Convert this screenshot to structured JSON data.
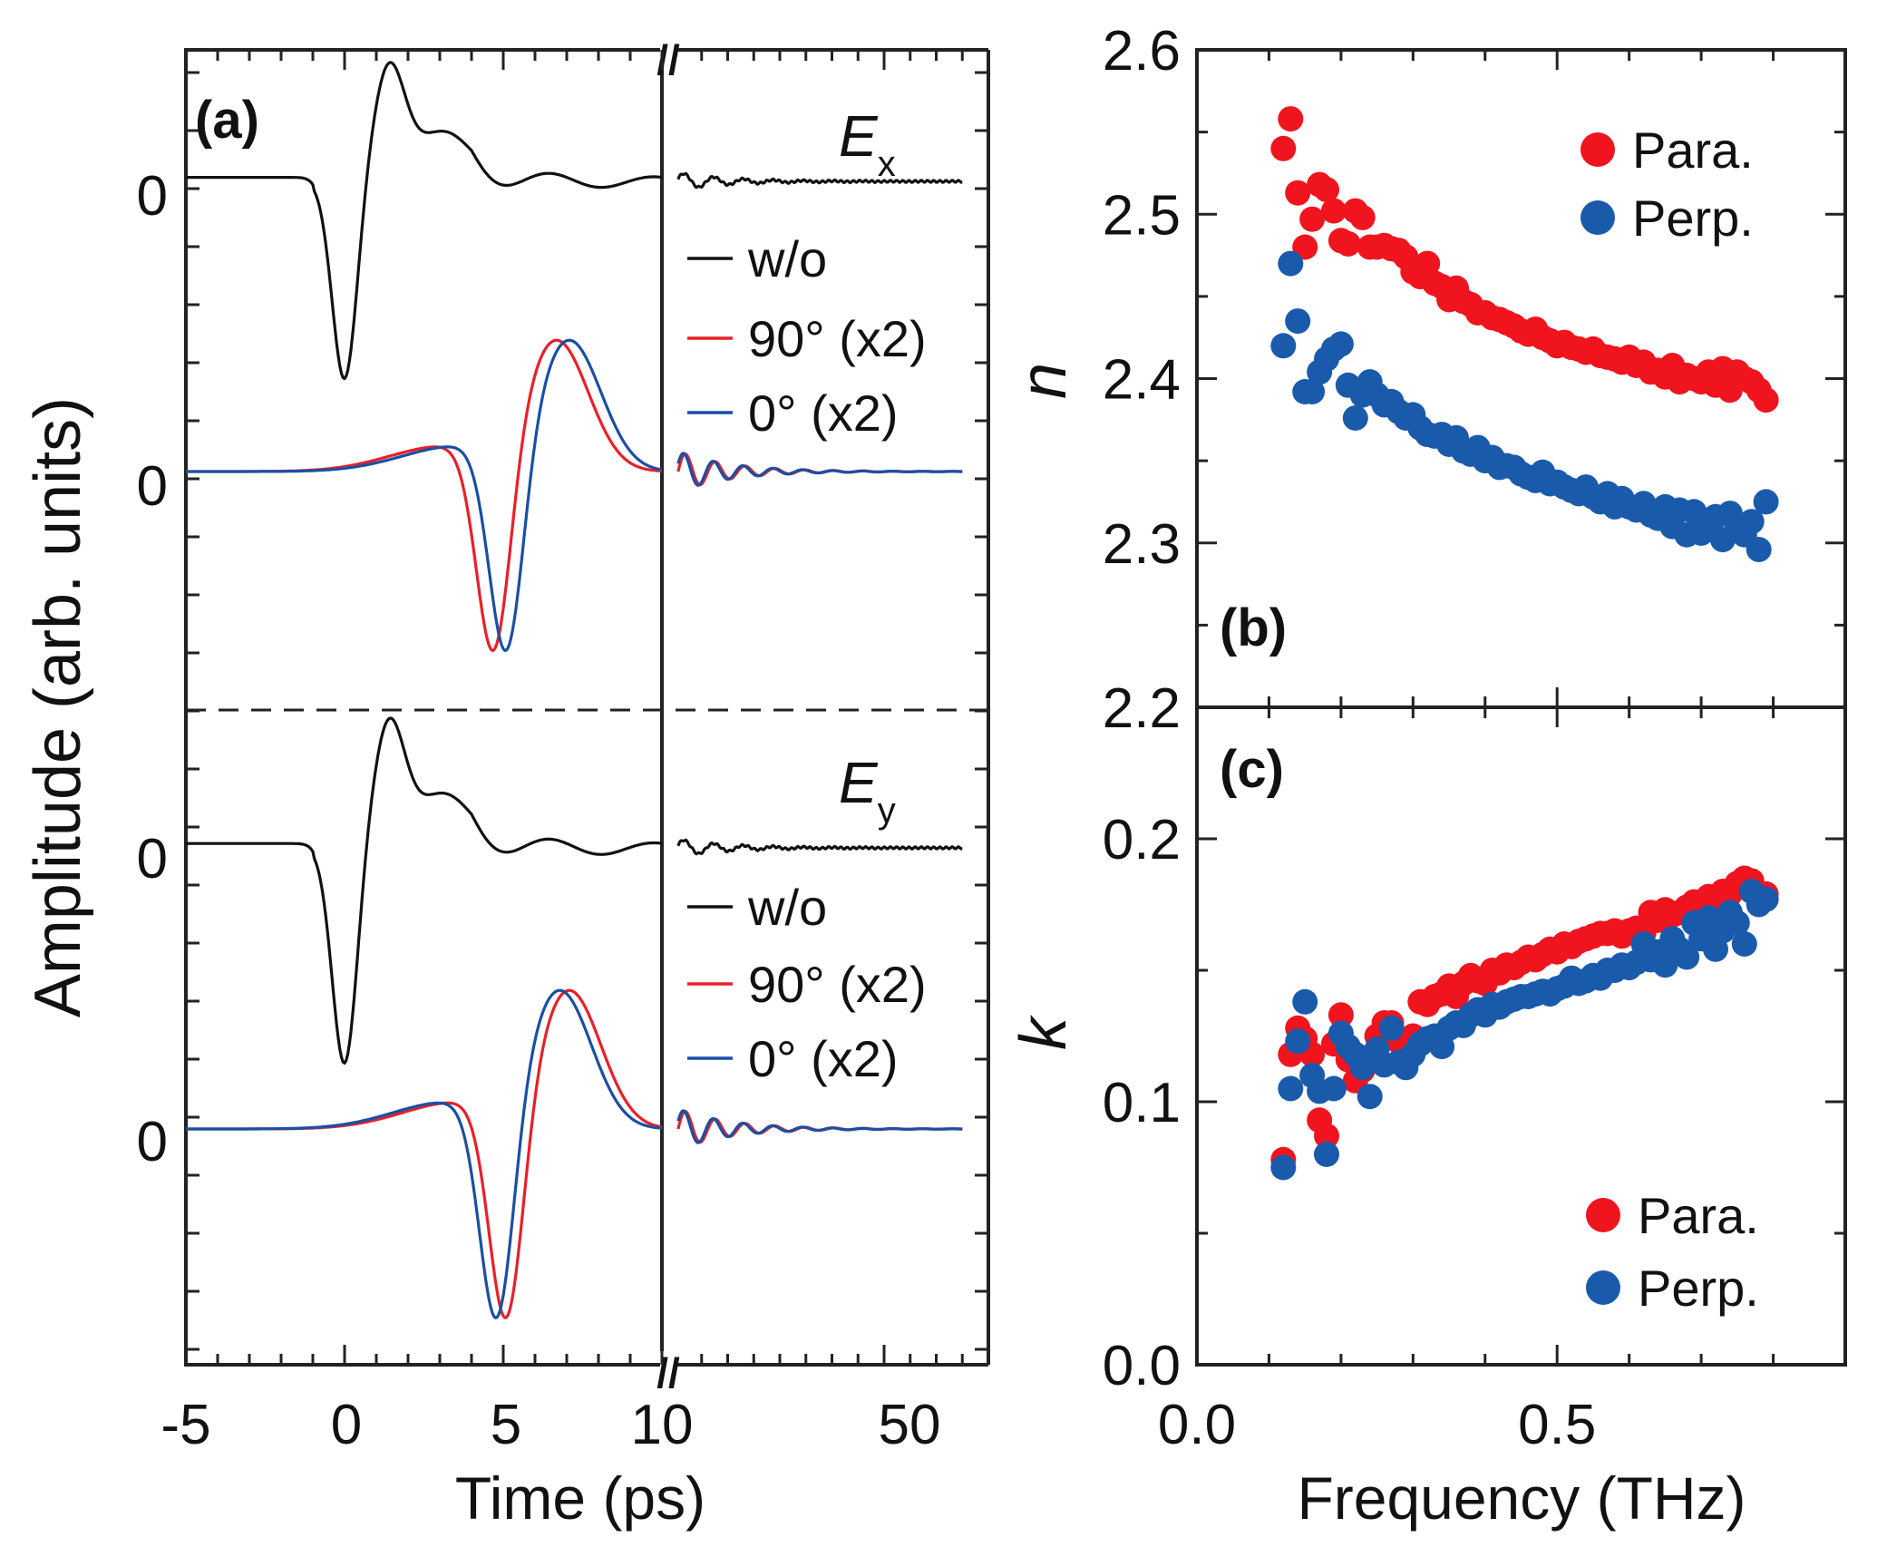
{
  "chart_data": [
    {
      "panel": "(a)",
      "type": "line",
      "xlabel": "Time (ps)",
      "ylabel": "Amplitude (arb. units)",
      "xticks": [
        "-5",
        "0",
        "5",
        "10",
        "50"
      ],
      "axis_break": "//",
      "subplots": [
        {
          "field": "E",
          "subscript": "x",
          "zero_labels": [
            "0",
            "0"
          ],
          "legend": [
            {
              "name": "w/o",
              "color": "#111111"
            },
            {
              "name": "90° (x2)",
              "color": "#e8202a"
            },
            {
              "name": "0° (x2)",
              "color": "#1a4fa3"
            }
          ]
        },
        {
          "field": "E",
          "subscript": "y",
          "zero_labels": [
            "0",
            "0"
          ],
          "legend": [
            {
              "name": "w/o",
              "color": "#111111"
            },
            {
              "name": "90° (x2)",
              "color": "#e8202a"
            },
            {
              "name": "0° (x2)",
              "color": "#1a4fa3"
            }
          ]
        }
      ]
    },
    {
      "panel": "(b)",
      "type": "scatter",
      "ylabel": "n",
      "ylim": [
        2.2,
        2.6
      ],
      "yticks": [
        "2.2",
        "2.3",
        "2.4",
        "2.5",
        "2.6"
      ],
      "xlim": [
        0.0,
        0.9
      ],
      "legend_position": "top-right",
      "series": [
        {
          "name": "Para.",
          "color": "#f0141e",
          "x": [
            0.12,
            0.13,
            0.14,
            0.15,
            0.16,
            0.17,
            0.18,
            0.19,
            0.2,
            0.21,
            0.22,
            0.23,
            0.24,
            0.25,
            0.26,
            0.27,
            0.28,
            0.29,
            0.3,
            0.31,
            0.32,
            0.33,
            0.34,
            0.35,
            0.36,
            0.37,
            0.38,
            0.39,
            0.4,
            0.41,
            0.42,
            0.43,
            0.44,
            0.45,
            0.46,
            0.47,
            0.48,
            0.49,
            0.5,
            0.51,
            0.52,
            0.53,
            0.54,
            0.55,
            0.56,
            0.57,
            0.58,
            0.59,
            0.6,
            0.61,
            0.62,
            0.63,
            0.64,
            0.65,
            0.66,
            0.67,
            0.68,
            0.69,
            0.7,
            0.71,
            0.72,
            0.73,
            0.74,
            0.75,
            0.76,
            0.77,
            0.78,
            0.79
          ],
          "values": [
            2.54,
            2.558,
            2.513,
            2.48,
            2.497,
            2.518,
            2.515,
            2.502,
            2.484,
            2.482,
            2.502,
            2.498,
            2.48,
            2.48,
            2.481,
            2.479,
            2.478,
            2.474,
            2.465,
            2.462,
            2.47,
            2.458,
            2.456,
            2.448,
            2.455,
            2.447,
            2.445,
            2.44,
            2.44,
            2.437,
            2.436,
            2.434,
            2.432,
            2.429,
            2.427,
            2.43,
            2.425,
            2.423,
            2.42,
            2.422,
            2.419,
            2.418,
            2.416,
            2.418,
            2.414,
            2.413,
            2.412,
            2.41,
            2.413,
            2.408,
            2.41,
            2.404,
            2.405,
            2.401,
            2.408,
            2.398,
            2.402,
            2.4,
            2.398,
            2.404,
            2.396,
            2.406,
            2.393,
            2.404,
            2.4,
            2.398,
            2.393,
            2.387
          ]
        },
        {
          "name": "Perp.",
          "color": "#1a5aab",
          "x": [
            0.12,
            0.13,
            0.14,
            0.15,
            0.16,
            0.17,
            0.18,
            0.19,
            0.2,
            0.21,
            0.22,
            0.23,
            0.24,
            0.25,
            0.26,
            0.27,
            0.28,
            0.29,
            0.3,
            0.31,
            0.32,
            0.33,
            0.34,
            0.35,
            0.36,
            0.37,
            0.38,
            0.39,
            0.4,
            0.41,
            0.42,
            0.43,
            0.44,
            0.45,
            0.46,
            0.47,
            0.48,
            0.49,
            0.5,
            0.51,
            0.52,
            0.53,
            0.54,
            0.55,
            0.56,
            0.57,
            0.58,
            0.59,
            0.6,
            0.61,
            0.62,
            0.63,
            0.64,
            0.65,
            0.66,
            0.67,
            0.68,
            0.69,
            0.7,
            0.71,
            0.72,
            0.73,
            0.74,
            0.75,
            0.76,
            0.77,
            0.78,
            0.79
          ],
          "values": [
            2.42,
            2.47,
            2.435,
            2.392,
            2.392,
            2.404,
            2.412,
            2.418,
            2.421,
            2.396,
            2.376,
            2.39,
            2.398,
            2.39,
            2.384,
            2.386,
            2.38,
            2.376,
            2.378,
            2.37,
            2.366,
            2.365,
            2.366,
            2.36,
            2.364,
            2.356,
            2.354,
            2.358,
            2.35,
            2.352,
            2.346,
            2.347,
            2.346,
            2.342,
            2.34,
            2.338,
            2.343,
            2.336,
            2.337,
            2.334,
            2.332,
            2.33,
            2.334,
            2.328,
            2.325,
            2.33,
            2.322,
            2.327,
            2.322,
            2.32,
            2.324,
            2.317,
            2.315,
            2.322,
            2.31,
            2.32,
            2.305,
            2.319,
            2.306,
            2.314,
            2.316,
            2.302,
            2.318,
            2.31,
            2.305,
            2.313,
            2.296,
            2.325
          ]
        }
      ],
      "panel_label": "(b)"
    },
    {
      "panel": "(c)",
      "type": "scatter",
      "ylabel": "k",
      "ylim": [
        0.0,
        0.25
      ],
      "yticks": [
        "0.0",
        "0.1",
        "0.2"
      ],
      "xlim": [
        0.0,
        0.9
      ],
      "xticks": [
        "0.0",
        "0.5"
      ],
      "xlabel": "Frequency (THz)",
      "legend_position": "bottom-right",
      "series": [
        {
          "name": "Para.",
          "color": "#f0141e",
          "x": [
            0.12,
            0.13,
            0.14,
            0.15,
            0.16,
            0.17,
            0.18,
            0.19,
            0.2,
            0.21,
            0.22,
            0.23,
            0.24,
            0.25,
            0.26,
            0.27,
            0.28,
            0.29,
            0.3,
            0.31,
            0.32,
            0.33,
            0.34,
            0.35,
            0.36,
            0.37,
            0.38,
            0.39,
            0.4,
            0.41,
            0.42,
            0.43,
            0.44,
            0.45,
            0.46,
            0.47,
            0.48,
            0.49,
            0.5,
            0.51,
            0.52,
            0.53,
            0.54,
            0.55,
            0.56,
            0.57,
            0.58,
            0.59,
            0.6,
            0.61,
            0.62,
            0.63,
            0.64,
            0.65,
            0.66,
            0.67,
            0.68,
            0.69,
            0.7,
            0.71,
            0.72,
            0.73,
            0.74,
            0.75,
            0.76,
            0.77,
            0.78,
            0.79
          ],
          "values": [
            0.078,
            0.118,
            0.128,
            0.124,
            0.118,
            0.093,
            0.087,
            0.122,
            0.133,
            0.116,
            0.108,
            0.112,
            0.116,
            0.125,
            0.13,
            0.13,
            0.123,
            0.118,
            0.125,
            0.138,
            0.137,
            0.14,
            0.141,
            0.144,
            0.14,
            0.145,
            0.148,
            0.146,
            0.145,
            0.15,
            0.149,
            0.152,
            0.151,
            0.153,
            0.155,
            0.154,
            0.156,
            0.158,
            0.157,
            0.16,
            0.159,
            0.161,
            0.162,
            0.163,
            0.164,
            0.164,
            0.165,
            0.163,
            0.165,
            0.166,
            0.164,
            0.172,
            0.169,
            0.173,
            0.171,
            0.172,
            0.174,
            0.176,
            0.173,
            0.178,
            0.177,
            0.18,
            0.179,
            0.183,
            0.185,
            0.184,
            0.178,
            0.179
          ]
        },
        {
          "name": "Perp.",
          "color": "#1a5aab",
          "x": [
            0.12,
            0.13,
            0.14,
            0.15,
            0.16,
            0.17,
            0.18,
            0.19,
            0.2,
            0.21,
            0.22,
            0.23,
            0.24,
            0.25,
            0.26,
            0.27,
            0.28,
            0.29,
            0.3,
            0.31,
            0.32,
            0.33,
            0.34,
            0.35,
            0.36,
            0.37,
            0.38,
            0.39,
            0.4,
            0.41,
            0.42,
            0.43,
            0.44,
            0.45,
            0.46,
            0.47,
            0.48,
            0.49,
            0.5,
            0.51,
            0.52,
            0.53,
            0.54,
            0.55,
            0.56,
            0.57,
            0.58,
            0.59,
            0.6,
            0.61,
            0.62,
            0.63,
            0.64,
            0.65,
            0.66,
            0.67,
            0.68,
            0.69,
            0.7,
            0.71,
            0.72,
            0.73,
            0.74,
            0.75,
            0.76,
            0.77,
            0.78,
            0.79
          ],
          "values": [
            0.075,
            0.105,
            0.123,
            0.138,
            0.11,
            0.104,
            0.08,
            0.105,
            0.126,
            0.121,
            0.118,
            0.113,
            0.102,
            0.12,
            0.114,
            0.128,
            0.115,
            0.113,
            0.118,
            0.122,
            0.124,
            0.125,
            0.121,
            0.128,
            0.13,
            0.129,
            0.133,
            0.135,
            0.133,
            0.137,
            0.136,
            0.138,
            0.139,
            0.14,
            0.14,
            0.141,
            0.142,
            0.141,
            0.143,
            0.144,
            0.147,
            0.145,
            0.146,
            0.148,
            0.147,
            0.15,
            0.15,
            0.152,
            0.151,
            0.153,
            0.16,
            0.154,
            0.157,
            0.152,
            0.162,
            0.158,
            0.155,
            0.168,
            0.162,
            0.17,
            0.158,
            0.165,
            0.172,
            0.168,
            0.16,
            0.18,
            0.175,
            0.177
          ]
        }
      ],
      "panel_label": "(c)"
    }
  ]
}
